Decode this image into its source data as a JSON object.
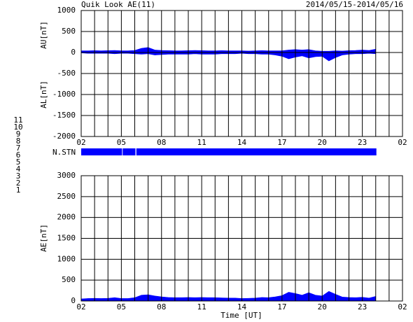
{
  "chart_data": [
    {
      "type": "area",
      "title": "Quik Look AE(11)",
      "date_range": "2014/05/15-2014/05/16",
      "ylabels": [
        "AU[nT]",
        "AL[nT]"
      ],
      "x": [
        2,
        2.5,
        3,
        3.5,
        4,
        4.5,
        5,
        5.5,
        6,
        6.5,
        7,
        7.5,
        8,
        8.5,
        9,
        9.5,
        10,
        10.5,
        11,
        11.5,
        12,
        12.5,
        13,
        13.5,
        14,
        14.5,
        15,
        15.5,
        16,
        16.5,
        17,
        17.5,
        18,
        18.5,
        19,
        19.5,
        20,
        20.5,
        21,
        21.5,
        22,
        22.5,
        23,
        23.5,
        24
      ],
      "series": [
        {
          "name": "AU",
          "color": "#0000ff",
          "values": [
            40,
            40,
            45,
            40,
            45,
            50,
            40,
            40,
            50,
            100,
            120,
            60,
            50,
            45,
            40,
            40,
            45,
            50,
            45,
            40,
            40,
            45,
            40,
            40,
            40,
            35,
            40,
            45,
            40,
            40,
            40,
            60,
            70,
            60,
            70,
            40,
            30,
            30,
            40,
            35,
            45,
            50,
            60,
            50,
            80
          ]
        },
        {
          "name": "AL",
          "color": "#0000ff",
          "values": [
            -10,
            -20,
            -20,
            -20,
            -20,
            -30,
            -20,
            -20,
            -30,
            -40,
            -30,
            -60,
            -50,
            -40,
            -40,
            -40,
            -40,
            -30,
            -40,
            -40,
            -40,
            -30,
            -30,
            -30,
            -20,
            -30,
            -30,
            -40,
            -40,
            -60,
            -90,
            -150,
            -110,
            -80,
            -130,
            -100,
            -90,
            -200,
            -120,
            -60,
            -40,
            -30,
            -30,
            -20,
            -30
          ]
        }
      ],
      "xlim": [
        2,
        26
      ],
      "xticks": [
        {
          "value": 2,
          "label": "02"
        },
        {
          "value": 5,
          "label": "05"
        },
        {
          "value": 8,
          "label": "08"
        },
        11,
        14,
        17,
        20,
        23,
        {
          "value": 26,
          "label": "02"
        }
      ],
      "xminorticks": [
        2,
        3,
        4,
        5,
        6,
        7,
        8,
        9,
        10,
        11,
        12,
        13,
        14,
        15,
        16,
        17,
        18,
        19,
        20,
        21,
        22,
        23,
        24,
        25,
        26
      ],
      "ylim": [
        -2000,
        1000
      ],
      "yticks": [
        1000,
        500,
        0,
        -500,
        -1000,
        -1500,
        -2000
      ],
      "grid": true
    },
    {
      "type": "timeline",
      "label": "N.STN",
      "x_start": [
        2,
        5.1,
        6.12
      ],
      "x_end": [
        5.05,
        6.05,
        24.05
      ],
      "values": [
        9,
        9,
        9
      ],
      "xlim": [
        2,
        26
      ],
      "station_key": {
        "values": [
          11,
          10,
          9,
          8,
          7,
          6,
          5,
          4,
          3,
          2,
          1
        ],
        "colors": [
          "#00d8d8",
          "#ff00ff",
          "#0000ff",
          "#f0f080",
          "#c8c800",
          "#ff0000",
          "#c8c8c8",
          "#a8a8c8",
          "#00a8a8",
          "#a000a0",
          "#000090"
        ]
      }
    },
    {
      "type": "area",
      "ylabel": "AE[nT]",
      "xlabel": "Time [UT]",
      "x": [
        2,
        2.5,
        3,
        3.5,
        4,
        4.5,
        5,
        5.5,
        6,
        6.5,
        7,
        7.5,
        8,
        8.5,
        9,
        9.5,
        10,
        10.5,
        11,
        11.5,
        12,
        12.5,
        13,
        13.5,
        14,
        14.5,
        15,
        15.5,
        16,
        16.5,
        17,
        17.5,
        18,
        18.5,
        19,
        19.5,
        20,
        20.5,
        21,
        21.5,
        22,
        22.5,
        23,
        23.5,
        24
      ],
      "series": [
        {
          "name": "AE",
          "color": "#0000ff",
          "values": [
            50,
            60,
            65,
            60,
            65,
            80,
            60,
            60,
            80,
            140,
            150,
            120,
            100,
            85,
            80,
            80,
            85,
            80,
            85,
            80,
            80,
            75,
            70,
            70,
            60,
            65,
            70,
            85,
            80,
            100,
            130,
            210,
            180,
            140,
            200,
            140,
            120,
            230,
            160,
            95,
            85,
            80,
            90,
            70,
            110
          ]
        }
      ],
      "xlim": [
        2,
        26
      ],
      "xticks": [
        {
          "value": 2,
          "label": "02"
        },
        {
          "value": 5,
          "label": "05"
        },
        {
          "value": 8,
          "label": "08"
        },
        11,
        14,
        17,
        20,
        23,
        {
          "value": 26,
          "label": "02"
        }
      ],
      "xminorticks": [
        2,
        3,
        4,
        5,
        6,
        7,
        8,
        9,
        10,
        11,
        12,
        13,
        14,
        15,
        16,
        17,
        18,
        19,
        20,
        21,
        22,
        23,
        24,
        25,
        26
      ],
      "ylim": [
        0,
        3000
      ],
      "yticks": [
        3000,
        2500,
        2000,
        1500,
        1000,
        500,
        0
      ],
      "grid": true
    }
  ]
}
